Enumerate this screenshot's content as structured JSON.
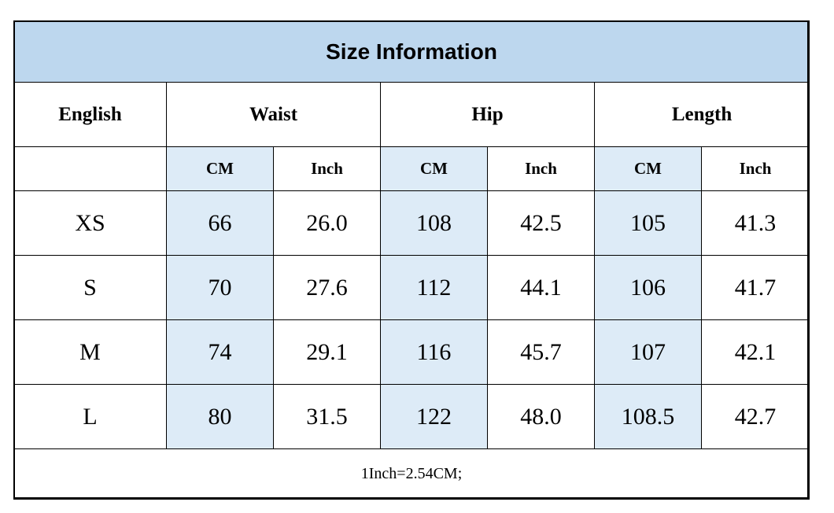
{
  "title": "Size Information",
  "headers": {
    "size": "English",
    "groups": [
      "Waist",
      "Hip",
      "Length"
    ],
    "units": [
      "CM",
      "Inch",
      "CM",
      "Inch",
      "CM",
      "Inch"
    ]
  },
  "rows": [
    {
      "size": "XS",
      "values": [
        "66",
        "26.0",
        "108",
        "42.5",
        "105",
        "41.3"
      ]
    },
    {
      "size": "S",
      "values": [
        "70",
        "27.6",
        "112",
        "44.1",
        "106",
        "41.7"
      ]
    },
    {
      "size": "M",
      "values": [
        "74",
        "29.1",
        "116",
        "45.7",
        "107",
        "42.1"
      ]
    },
    {
      "size": "L",
      "values": [
        "80",
        "31.5",
        "122",
        "48.0",
        "108.5",
        "42.7"
      ]
    }
  ],
  "note": "1Inch=2.54CM;",
  "colors": {
    "title_background": "#bdd7ee",
    "cm_column_background": "#ddebf7"
  }
}
